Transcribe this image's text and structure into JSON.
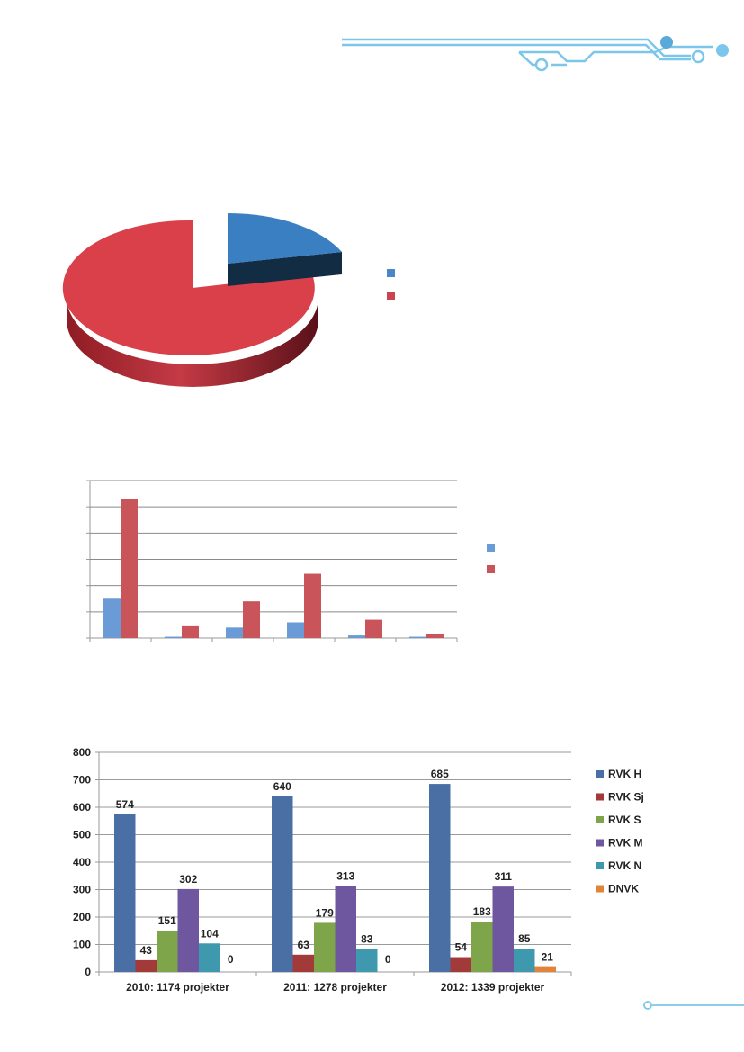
{
  "chart_data": [
    {
      "type": "pie",
      "title": "",
      "slices": [
        {
          "value": 18,
          "color": "#3a7fc1"
        },
        {
          "value": 82,
          "color": "#d9404a"
        }
      ],
      "legend": {
        "placement": "right",
        "labels": [
          "",
          ""
        ]
      },
      "colors": {
        "blue": "#4a86c8",
        "red": "#c9444f"
      }
    },
    {
      "type": "bar",
      "title": "",
      "categories": [
        "",
        "",
        "",
        "",
        "",
        ""
      ],
      "series": [
        {
          "color": "#6a9bd6",
          "values": [
            30,
            1,
            8,
            12,
            2,
            1
          ]
        },
        {
          "color": "#c9545a",
          "values": [
            106,
            9,
            28,
            49,
            14,
            3
          ]
        }
      ],
      "ylim": [
        0,
        120
      ],
      "grid": true,
      "legend": {
        "placement": "right",
        "labels": [
          "",
          ""
        ]
      }
    },
    {
      "type": "bar",
      "title": "",
      "categories": [
        "2010: 1174 projekter",
        "2011: 1278 projekter",
        "2012: 1339 projekter"
      ],
      "series": [
        {
          "name": "RVK H",
          "color": "#4a6fa5",
          "values": [
            574,
            640,
            685
          ]
        },
        {
          "name": "RVK Sj",
          "color": "#a33a3a",
          "values": [
            43,
            63,
            54
          ]
        },
        {
          "name": "RVK S",
          "color": "#7fa54a",
          "values": [
            151,
            179,
            183
          ]
        },
        {
          "name": "RVK M",
          "color": "#6f57a0",
          "values": [
            302,
            313,
            311
          ]
        },
        {
          "name": "RVK N",
          "color": "#3e98ae",
          "values": [
            104,
            83,
            85
          ]
        },
        {
          "name": "DNVK",
          "color": "#e0843a",
          "values": [
            0,
            0,
            21
          ]
        }
      ],
      "ylim": [
        0,
        800
      ],
      "yticks": [
        "0",
        "100",
        "200",
        "300",
        "400",
        "500",
        "600",
        "700",
        "800"
      ],
      "grid": true,
      "legend": {
        "placement": "right"
      }
    }
  ]
}
